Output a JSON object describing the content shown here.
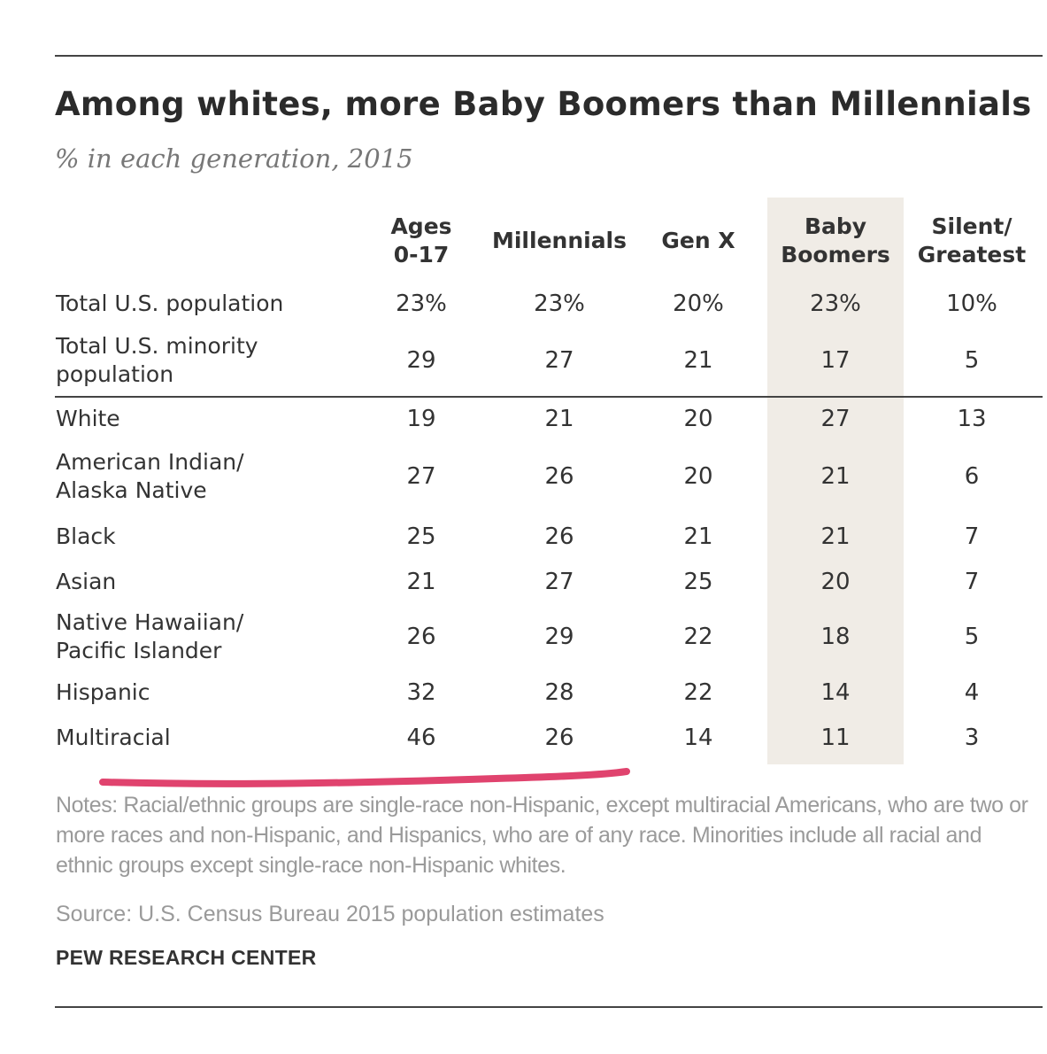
{
  "header": {
    "title": "Among whites, more Baby Boomers than Millennials",
    "subtitle": "% in each generation, 2015"
  },
  "chart_data": {
    "type": "table",
    "title": "Among whites, more Baby Boomers than Millennials",
    "subtitle": "% in each generation, 2015",
    "columns": [
      "Ages\n0-17",
      "Millennials",
      "Gen X",
      "Baby\nBoomers",
      "Silent/\nGreatest"
    ],
    "highlight_column": "Baby\nBoomers",
    "rows": [
      {
        "label": "Total U.S. population",
        "values": [
          "23%",
          "23%",
          "20%",
          "23%",
          "10%"
        ]
      },
      {
        "label": "Total U.S. minority\npopulation",
        "values": [
          "29",
          "27",
          "21",
          "17",
          "5"
        ]
      },
      {
        "label": "White",
        "values": [
          "19",
          "21",
          "20",
          "27",
          "13"
        ]
      },
      {
        "label": "American Indian/\nAlaska Native",
        "values": [
          "27",
          "26",
          "20",
          "21",
          "6"
        ]
      },
      {
        "label": "Black",
        "values": [
          "25",
          "26",
          "21",
          "21",
          "7"
        ]
      },
      {
        "label": "Asian",
        "values": [
          "21",
          "27",
          "25",
          "20",
          "7"
        ]
      },
      {
        "label": "Native Hawaiian/\nPacific Islander",
        "values": [
          "26",
          "29",
          "22",
          "18",
          "5"
        ]
      },
      {
        "label": "Hispanic",
        "values": [
          "32",
          "28",
          "22",
          "14",
          "4"
        ]
      },
      {
        "label": "Multiracial",
        "values": [
          "46",
          "26",
          "14",
          "11",
          "3"
        ]
      }
    ]
  },
  "footer": {
    "notes": "Notes: Racial/ethnic groups are single-race non-Hispanic, except multiracial Americans, who are two or more races and non-Hispanic, and Hispanics, who are of any race. Minorities include all racial and ethnic groups except single-race non-Hispanic whites.",
    "source": "Source: U.S. Census Bureau 2015 population estimates",
    "organization": "PEW RESEARCH CENTER"
  },
  "colors": {
    "highlight_band": "#f0ece6",
    "annotation_underline": "#e0436e",
    "text": "#333333",
    "muted_text": "#9a9a9a"
  }
}
